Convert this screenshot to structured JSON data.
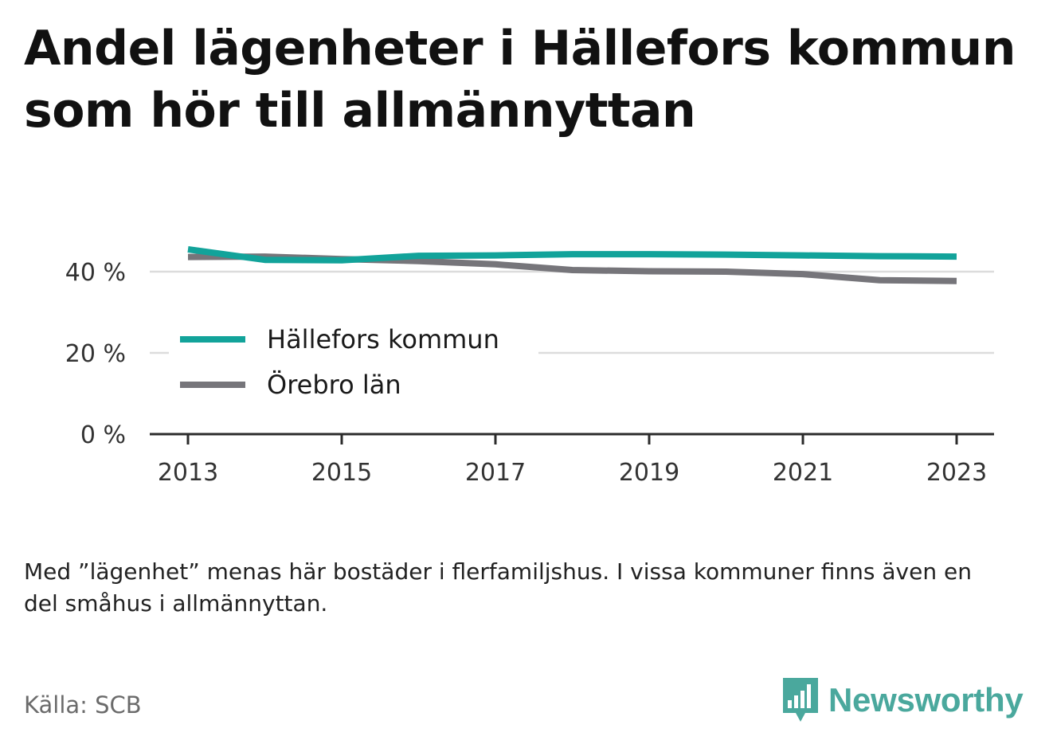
{
  "title": "Andel lägenheter i Hällefors kommun som hör till allmännyttan",
  "note": "Med ”lägenhet” menas här bostäder i flerfamiljshus. I vissa kommuner finns även en del småhus i allmännyttan.",
  "source": "Källa: SCB",
  "brand": {
    "name": "Newsworthy",
    "icon": "bar-chart-speech-bubble-icon",
    "color": "#4aa89d"
  },
  "chart_data": {
    "type": "line",
    "title": "Andel lägenheter i Hällefors kommun som hör till allmännyttan",
    "xlabel": "",
    "ylabel": "",
    "x": [
      2013,
      2014,
      2015,
      2016,
      2017,
      2018,
      2019,
      2020,
      2021,
      2022,
      2023
    ],
    "x_ticks": [
      "2013",
      "2015",
      "2017",
      "2019",
      "2021",
      "2023"
    ],
    "y_ticks": [
      {
        "value": 0,
        "label": "0 %"
      },
      {
        "value": 20,
        "label": "20 %"
      },
      {
        "value": 40,
        "label": "40 %"
      }
    ],
    "ylim": [
      0,
      45
    ],
    "grid": true,
    "legend_position": "center-left",
    "series": [
      {
        "name": "Hällefors kommun",
        "color": "#12a39a",
        "values": [
          45.5,
          42.9,
          42.8,
          43.9,
          44.0,
          44.3,
          44.3,
          44.2,
          44.0,
          43.8,
          43.7
        ]
      },
      {
        "name": "Örebro län",
        "color": "#76757a",
        "values": [
          43.6,
          43.7,
          43.1,
          42.6,
          41.8,
          40.4,
          40.1,
          40.0,
          39.4,
          37.9,
          37.7
        ]
      }
    ]
  }
}
